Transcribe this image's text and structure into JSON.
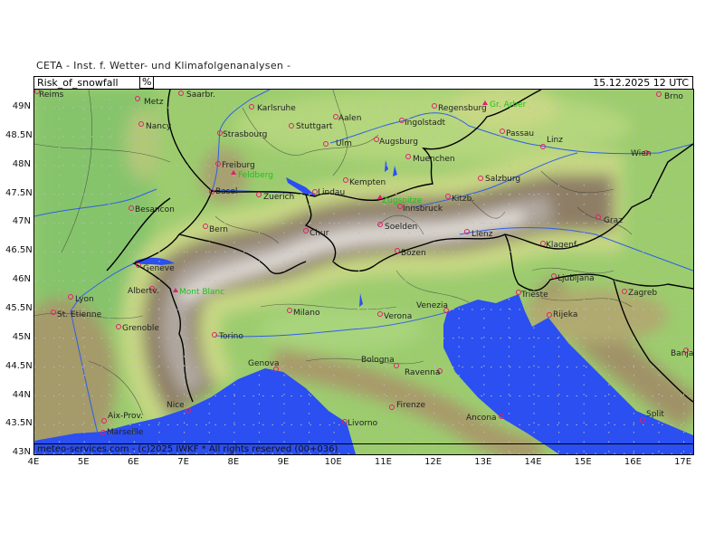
{
  "header": {
    "supertitle": "CETA - Inst. f. Wetter- und Klimafolgenanalysen -",
    "parameter": "Risk_of_snowfall",
    "unit": "%",
    "datetime": "15.12.2025 12 UTC"
  },
  "footer": "meteo-services.com - (c)2025 IWKF * All rights reserved (00+036)",
  "axes": {
    "lat_labels": [
      "49N",
      "48.5N",
      "48N",
      "47.5N",
      "47N",
      "46.5N",
      "46N",
      "45.5N",
      "45N",
      "44.5N",
      "44N",
      "43.5N",
      "43N"
    ],
    "lon_labels": [
      "4E",
      "5E",
      "6E",
      "7E",
      "8E",
      "9E",
      "10E",
      "11E",
      "12E",
      "13E",
      "14E",
      "15E",
      "16E",
      "17E"
    ]
  },
  "colors": {
    "sea": "#2b4ff0",
    "lowland": "#9ccc6e",
    "foothills": "#c8dc86",
    "mountain": "#8a7a6a",
    "peak": "#f0ece8",
    "marker": "#e0206a",
    "peak_label": "#20c020"
  },
  "cities": [
    "Reims",
    "Metz",
    "Saarbr.",
    "Karlsruhe",
    "Nancy",
    "Strasbourg",
    "Stuttgart",
    "Aalen",
    "Ingolstadt",
    "Regensburg",
    "Passau",
    "Linz",
    "Wien",
    "Brno",
    "Ulm",
    "Augsburg",
    "Muenchen",
    "Freiburg",
    "Basel",
    "Zuerich",
    "Lindau",
    "Kempten",
    "Innsbruck",
    "Kitzb.",
    "Salzburg",
    "Besancon",
    "Bern",
    "Chur",
    "Soelden",
    "Lienz",
    "Graz",
    "Klagenf.",
    "Bozen",
    "Geneve",
    "Albertv.",
    "Lyon",
    "St. Etienne",
    "Grenoble",
    "Ljubljana",
    "Zagreb",
    "Milano",
    "Venezia",
    "Trieste",
    "Verona",
    "Rijeka",
    "Torino",
    "Bologna",
    "Ravenna",
    "Genova",
    "Banja Luka",
    "Nice",
    "Aix-Prov.",
    "Marseille",
    "Livorno",
    "Firenze",
    "Ancona",
    "Split"
  ],
  "peaks": [
    "Gr. Arber",
    "Feldberg",
    "Zugspitze",
    "Mont Blanc"
  ]
}
